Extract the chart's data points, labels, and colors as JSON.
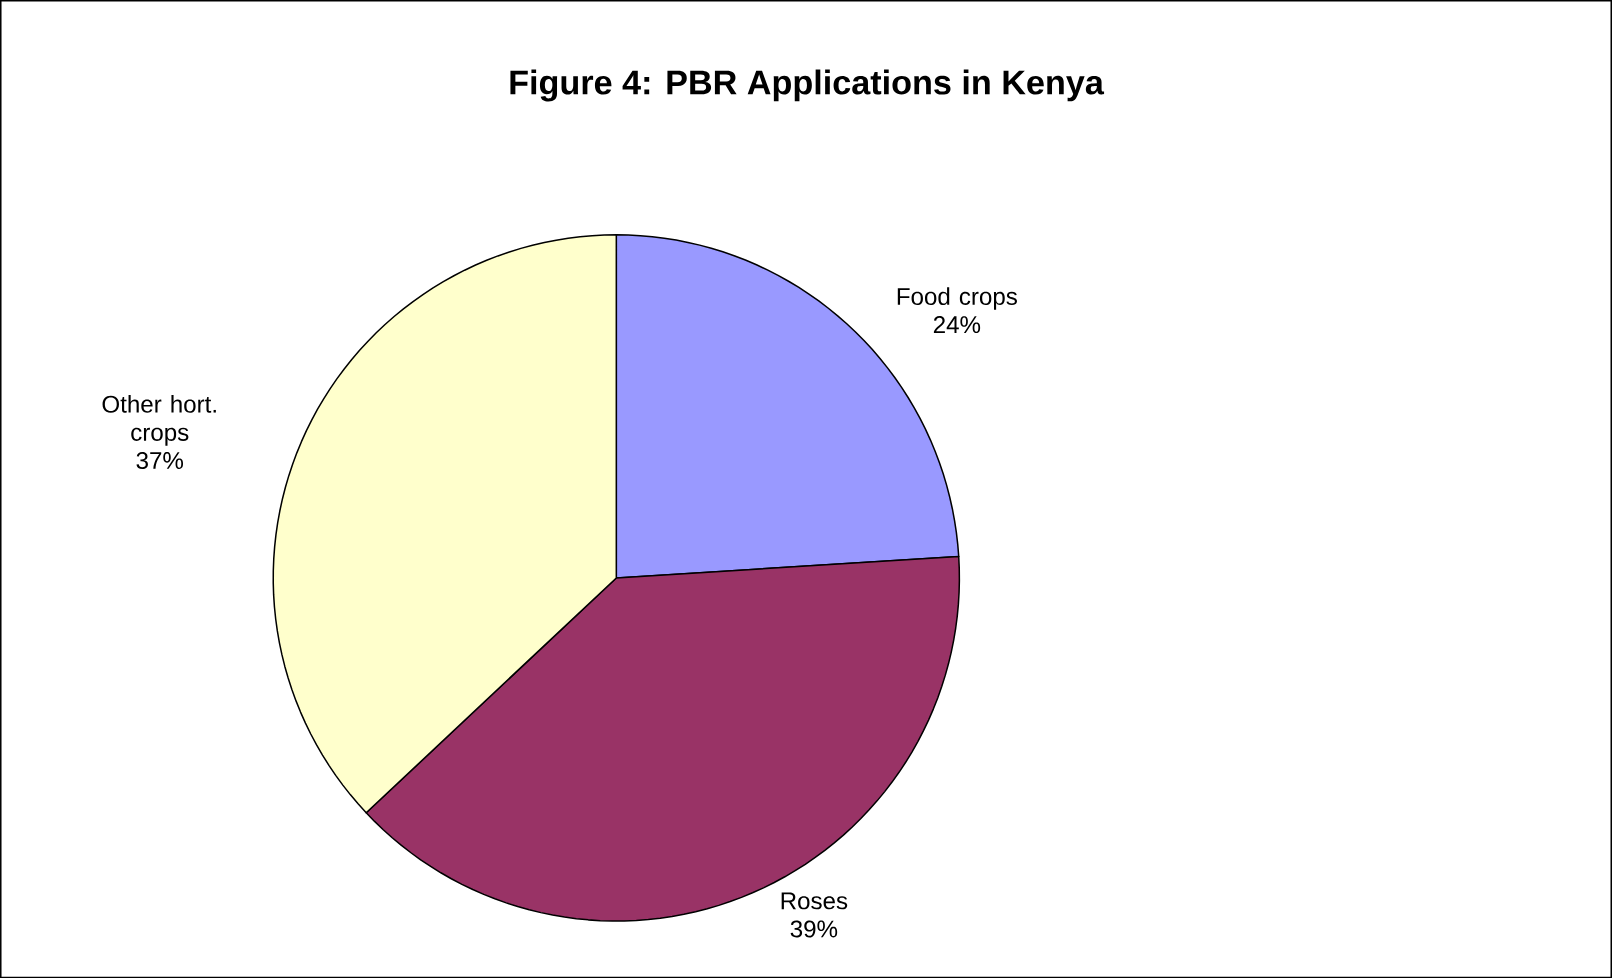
{
  "chart_data": {
    "type": "pie",
    "title": "Figure 4: PBR Applications in Kenya",
    "categories": [
      "Food crops",
      "Roses",
      "Other hort. crops"
    ],
    "values": [
      24,
      39,
      37
    ],
    "value_labels": [
      "24%",
      "39%",
      "37%"
    ],
    "colors": [
      "#9999ff",
      "#993366",
      "#ffffcc"
    ]
  }
}
